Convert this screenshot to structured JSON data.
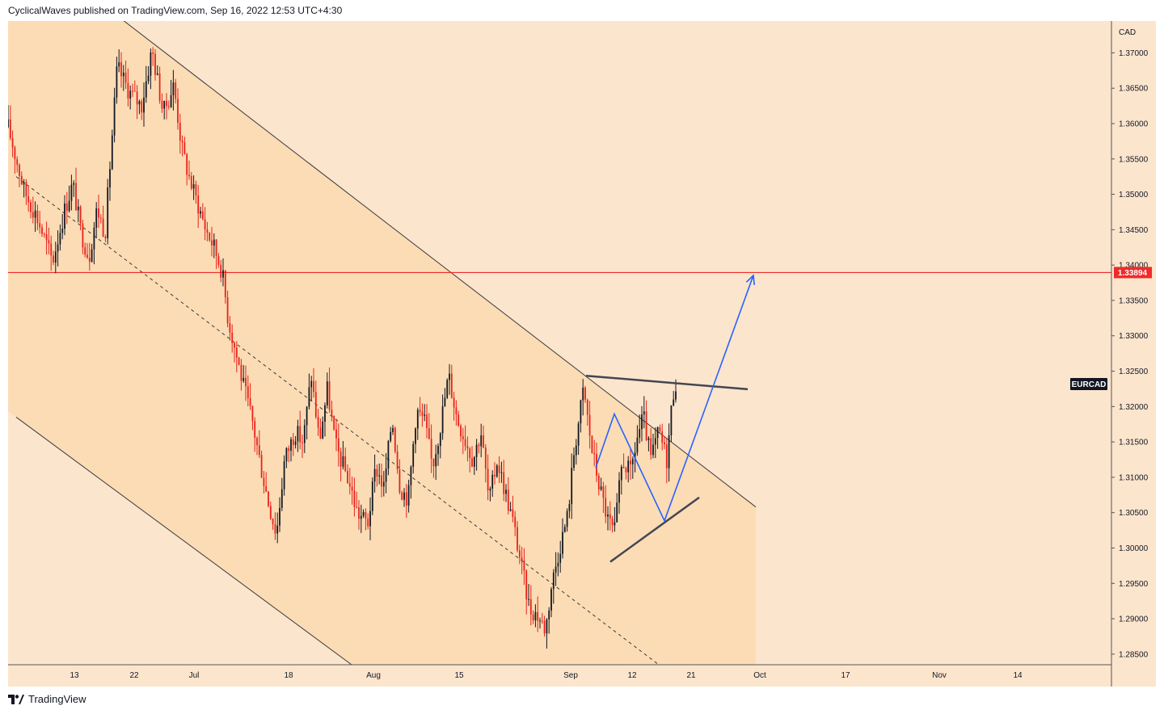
{
  "header": {
    "published_line": "CyclicalWaves published on TradingView.com, Sep 16, 2022 12:53 UTC+4:30"
  },
  "footer": {
    "brand": "TradingView",
    "logo_icon": "tradingview-logo-icon"
  },
  "colors": {
    "background": "#fce5cd",
    "channel_fill": "#fbdcb5",
    "bull_candle": "#131722",
    "bear_candle": "#e8221a",
    "resistance_line": "#ef2a2a",
    "projection": "#2962ff",
    "triangle": "#434651"
  },
  "chart_data": {
    "type": "candlestick",
    "symbol_label": "EURCAD",
    "currency_label": "CAD",
    "price_axis": {
      "ticks": [
        "1.37000",
        "1.36500",
        "1.36000",
        "1.35500",
        "1.35000",
        "1.34500",
        "1.34000",
        "1.33500",
        "1.33000",
        "1.32500",
        "1.32000",
        "1.31500",
        "1.31000",
        "1.30500",
        "1.30000",
        "1.29500",
        "1.29000",
        "1.28500"
      ],
      "ylim": [
        1.2835,
        1.3745
      ]
    },
    "time_axis": {
      "ticks": [
        "13",
        "22",
        "Jul",
        "18",
        "Aug",
        "15",
        "Sep",
        "12",
        "21",
        "Oct",
        "17",
        "Nov",
        "14"
      ]
    },
    "horizontal_level": {
      "value": 1.33894,
      "label": "1.33894"
    },
    "series_anchors": [
      [
        0,
        1.3595
      ],
      [
        20,
        1.3505
      ],
      [
        35,
        1.347
      ],
      [
        55,
        1.3405
      ],
      [
        70,
        1.3478
      ],
      [
        80,
        1.3515
      ],
      [
        90,
        1.3448
      ],
      [
        100,
        1.341
      ],
      [
        110,
        1.348
      ],
      [
        120,
        1.3445
      ],
      [
        125,
        1.3525
      ],
      [
        135,
        1.368
      ],
      [
        150,
        1.3645
      ],
      [
        165,
        1.3625
      ],
      [
        178,
        1.3705
      ],
      [
        192,
        1.3615
      ],
      [
        205,
        1.3655
      ],
      [
        215,
        1.3565
      ],
      [
        225,
        1.352
      ],
      [
        235,
        1.3485
      ],
      [
        245,
        1.345
      ],
      [
        255,
        1.3425
      ],
      [
        265,
        1.339
      ],
      [
        272,
        1.3325
      ],
      [
        282,
        1.3275
      ],
      [
        292,
        1.3225
      ],
      [
        302,
        1.318
      ],
      [
        312,
        1.312
      ],
      [
        322,
        1.3065
      ],
      [
        332,
        1.302
      ],
      [
        342,
        1.3125
      ],
      [
        355,
        1.3165
      ],
      [
        365,
        1.315
      ],
      [
        375,
        1.3245
      ],
      [
        385,
        1.315
      ],
      [
        395,
        1.3225
      ],
      [
        405,
        1.3145
      ],
      [
        420,
        1.31
      ],
      [
        432,
        1.305
      ],
      [
        445,
        1.3035
      ],
      [
        455,
        1.3115
      ],
      [
        465,
        1.3085
      ],
      [
        475,
        1.3185
      ],
      [
        485,
        1.3085
      ],
      [
        495,
        1.307
      ],
      [
        505,
        1.3195
      ],
      [
        515,
        1.318
      ],
      [
        525,
        1.3115
      ],
      [
        535,
        1.3175
      ],
      [
        545,
        1.3245
      ],
      [
        555,
        1.3185
      ],
      [
        565,
        1.3155
      ],
      [
        575,
        1.3125
      ],
      [
        585,
        1.3165
      ],
      [
        595,
        1.3065
      ],
      [
        605,
        1.3125
      ],
      [
        615,
        1.308
      ],
      [
        625,
        1.3035
      ],
      [
        635,
        1.2975
      ],
      [
        645,
        1.2915
      ],
      [
        655,
        1.2905
      ],
      [
        665,
        1.2885
      ],
      [
        672,
        1.2945
      ],
      [
        682,
        1.3
      ],
      [
        692,
        1.3045
      ],
      [
        700,
        1.3135
      ],
      [
        712,
        1.3225
      ],
      [
        722,
        1.314
      ],
      [
        732,
        1.3085
      ],
      [
        742,
        1.304
      ],
      [
        750,
        1.302
      ],
      [
        760,
        1.3125
      ],
      [
        770,
        1.3105
      ],
      [
        778,
        1.3155
      ],
      [
        786,
        1.3185
      ],
      [
        795,
        1.3125
      ],
      [
        805,
        1.3165
      ],
      [
        815,
        1.3125
      ],
      [
        822,
        1.3215
      ],
      [
        828,
        1.3245
      ]
    ],
    "annotations": {
      "channel_upper": [
        [
          115,
          1.377
        ],
        [
          925,
          1.3058
        ]
      ],
      "channel_mid": [
        [
          10,
          1.3525
        ],
        [
          805,
          1.2835
        ]
      ],
      "channel_lower": [
        [
          10,
          1.3185
        ],
        [
          425,
          1.2835
        ]
      ],
      "triangle_upper": [
        [
          715,
          1.32435
        ],
        [
          915,
          1.32245
        ]
      ],
      "triangle_lower": [
        [
          745,
          1.29805
        ],
        [
          855,
          1.30715
        ]
      ],
      "projection_path": [
        [
          727,
          1.31135
        ],
        [
          750,
          1.31895
        ],
        [
          812,
          1.30385
        ],
        [
          922,
          1.33854
        ]
      ]
    }
  }
}
